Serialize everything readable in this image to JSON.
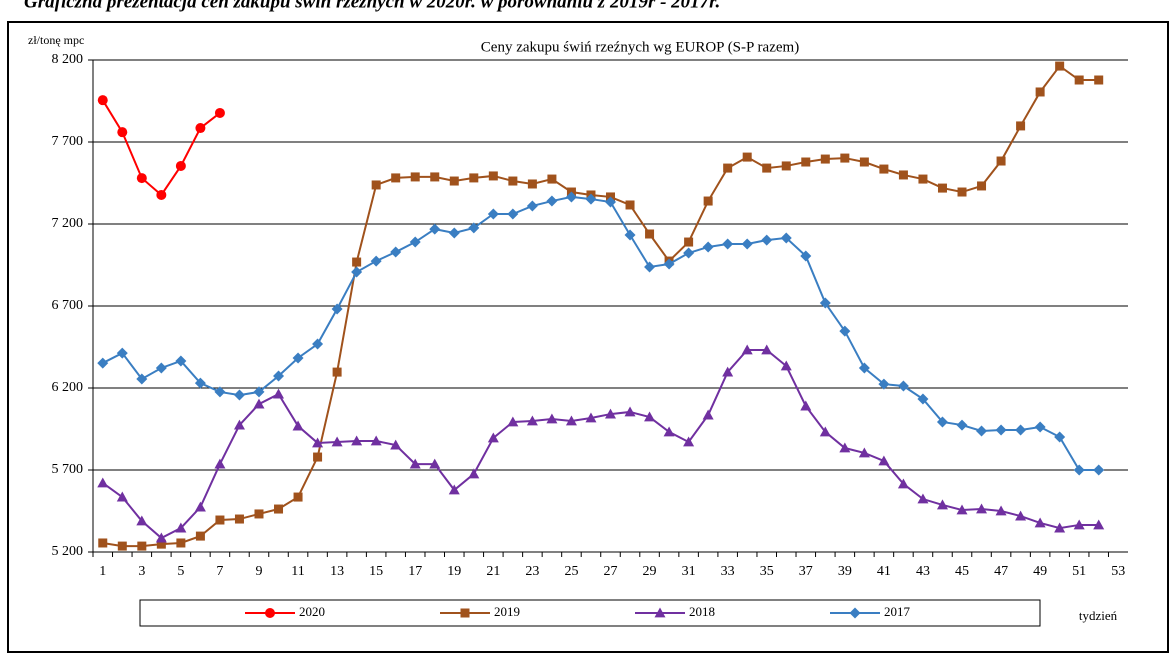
{
  "page_title": "Graficzna prezentacja cen zakupu świń rzeźnych w 2020r. w porównaniu z 2019r - 2017r.",
  "chart_data": {
    "type": "line",
    "title": "Ceny zakupu świń rzeźnych wg EUROP (S-P razem)",
    "y_label": "zł/tonę  mpc",
    "x_label": "tydzień",
    "categories": [
      1,
      null,
      3,
      null,
      5,
      null,
      7,
      null,
      9,
      null,
      11,
      null,
      13,
      null,
      15,
      null,
      17,
      null,
      19,
      null,
      21,
      null,
      23,
      null,
      25,
      null,
      27,
      null,
      29,
      null,
      31,
      null,
      33,
      null,
      35,
      null,
      37,
      null,
      39,
      null,
      41,
      null,
      43,
      null,
      45,
      null,
      47,
      null,
      49,
      null,
      51,
      null,
      53
    ],
    "ylim": [
      5200,
      8200
    ],
    "yticks": [
      {
        "value": 5200,
        "label": "5 200"
      },
      {
        "value": 5700,
        "label": "5 700"
      },
      {
        "value": 6200,
        "label": "6 200"
      },
      {
        "value": 6700,
        "label": "6 700"
      },
      {
        "value": 7200,
        "label": "7 200"
      },
      {
        "value": 7700,
        "label": "7 700"
      },
      {
        "value": 8200,
        "label": "8 200"
      }
    ],
    "grid": true,
    "series": [
      {
        "name": "2020",
        "color": "#ff0000",
        "marker": "circle",
        "values": [
          7955,
          7760,
          7480,
          7377,
          7554,
          7785,
          7877,
          null,
          null,
          null,
          null,
          null,
          null,
          null,
          null,
          null,
          null,
          null,
          null,
          null,
          null,
          null,
          null,
          null,
          null,
          null,
          null,
          null,
          null,
          null,
          null,
          null,
          null,
          null,
          null,
          null,
          null,
          null,
          null,
          null,
          null,
          null,
          null,
          null,
          null,
          null,
          null,
          null,
          null,
          null,
          null,
          null,
          null
        ]
      },
      {
        "name": "2019",
        "color": "#a0521c",
        "marker": "square",
        "values": [
          5255,
          5236,
          5236,
          5248,
          5255,
          5297,
          5395,
          5401,
          5432,
          5462,
          5535,
          5779,
          6297,
          6968,
          7438,
          7481,
          7487,
          7487,
          7462,
          7481,
          7493,
          7462,
          7444,
          7474,
          7395,
          7377,
          7365,
          7316,
          7139,
          6974,
          7090,
          7340,
          7541,
          7608,
          7541,
          7554,
          7578,
          7596,
          7602,
          7578,
          7535,
          7499,
          7474,
          7419,
          7395,
          7432,
          7584,
          7798,
          8005,
          8163,
          8078,
          8078,
          null
        ]
      },
      {
        "name": "2018",
        "color": "#7030a0",
        "marker": "triangle",
        "values": [
          5621,
          5535,
          5389,
          5285,
          5346,
          5474,
          5736,
          5974,
          6102,
          6163,
          5968,
          5865,
          5871,
          5877,
          5877,
          5852,
          5736,
          5736,
          5578,
          5676,
          5895,
          5993,
          5999,
          6011,
          5999,
          6017,
          6041,
          6054,
          6023,
          5932,
          5871,
          6035,
          6297,
          6432,
          6432,
          6334,
          6090,
          5932,
          5834,
          5804,
          5755,
          5615,
          5523,
          5487,
          5456,
          5462,
          5450,
          5419,
          5377,
          5346,
          5365,
          5365,
          null
        ]
      },
      {
        "name": "2017",
        "color": "#3a7ec2",
        "marker": "diamond",
        "values": [
          6352,
          6413,
          6255,
          6322,
          6365,
          6230,
          6176,
          6157,
          6176,
          6273,
          6383,
          6468,
          6682,
          6907,
          6974,
          7029,
          7090,
          7169,
          7145,
          7176,
          7261,
          7261,
          7310,
          7340,
          7365,
          7352,
          7334,
          7133,
          6938,
          6956,
          7023,
          7060,
          7078,
          7078,
          7102,
          7115,
          7005,
          6718,
          6547,
          6322,
          6224,
          6212,
          6133,
          5993,
          5974,
          5938,
          5944,
          5944,
          5962,
          5901,
          5700,
          5700,
          null
        ]
      }
    ]
  }
}
